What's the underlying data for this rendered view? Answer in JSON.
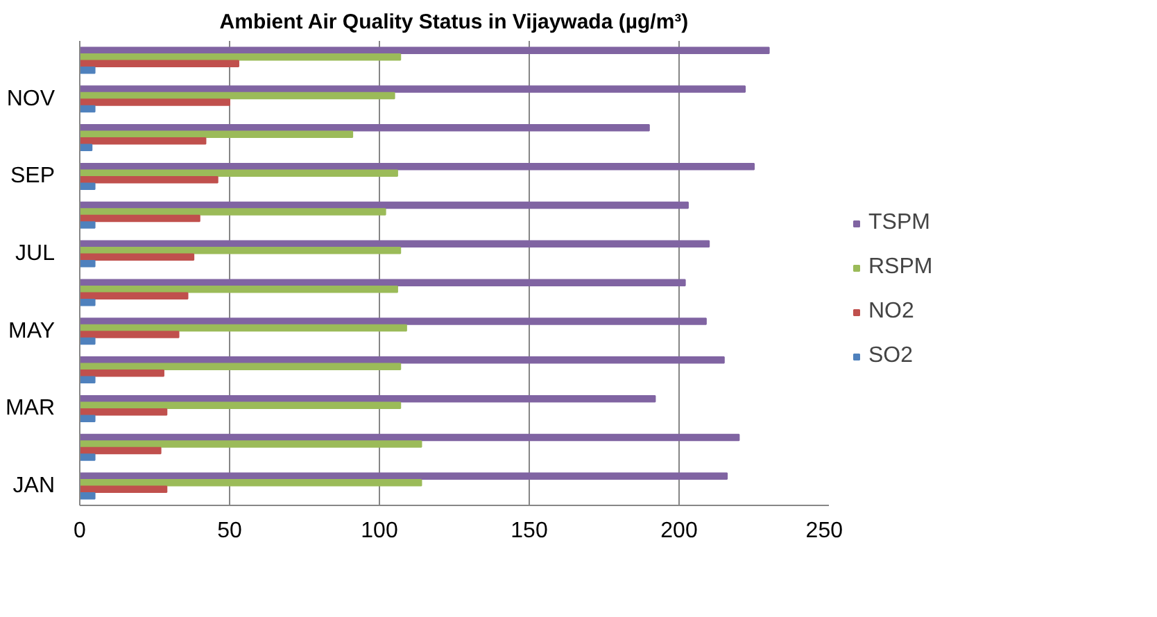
{
  "chart_data": {
    "type": "bar",
    "orientation": "horizontal",
    "title": "Ambient Air Quality Status in Vijaywada (µg/m³)",
    "categories": [
      null,
      "NOV",
      null,
      "SEP",
      null,
      "JUL",
      null,
      "MAY",
      null,
      "MAR",
      null,
      "JAN"
    ],
    "series": [
      {
        "name": "TSPM",
        "color": "#8064a2",
        "values": [
          230,
          222,
          190,
          225,
          203,
          210,
          202,
          209,
          215,
          192,
          220,
          216
        ]
      },
      {
        "name": "RSPM",
        "color": "#9bbb59",
        "values": [
          107,
          105,
          91,
          106,
          102,
          107,
          106,
          109,
          107,
          107,
          114,
          114
        ]
      },
      {
        "name": "NO2",
        "color": "#c0504d",
        "values": [
          53,
          50,
          42,
          46,
          40,
          38,
          36,
          33,
          28,
          29,
          27,
          29
        ]
      },
      {
        "name": "SO2",
        "color": "#4f81bd",
        "values": [
          5,
          5,
          4,
          5,
          5,
          5,
          5,
          5,
          5,
          5,
          5,
          5
        ]
      }
    ],
    "xlim": [
      0,
      250
    ],
    "xticks": [
      0,
      50,
      100,
      150,
      200,
      250
    ],
    "grid": "x",
    "legend": "right"
  }
}
